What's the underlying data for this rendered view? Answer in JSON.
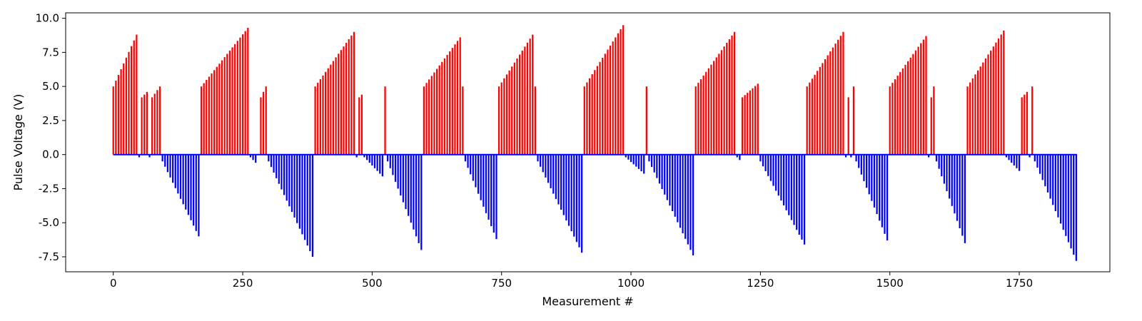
{
  "chart_data": {
    "type": "bar",
    "title": "",
    "xlabel": "Measurement #",
    "ylabel": "Pulse Voltage (V)",
    "xlim": [
      -92,
      1925
    ],
    "ylim": [
      -8.6,
      10.4
    ],
    "xticks": [
      0,
      250,
      500,
      750,
      1000,
      1250,
      1500,
      1750
    ],
    "yticks": [
      -7.5,
      -5.0,
      -2.5,
      0.0,
      2.5,
      5.0,
      7.5,
      10.0
    ],
    "x_step": 5,
    "grid": false,
    "legend": "none",
    "colors": {
      "positive": "#ff0000",
      "negative": "#0000ff"
    },
    "segments": [
      {
        "sign": "pos",
        "start": 0,
        "n": 10,
        "from": 5.0,
        "to": 8.8
      },
      {
        "sign": "neg",
        "start": 50,
        "n": 1,
        "from": -0.2,
        "to": -0.2
      },
      {
        "sign": "pos",
        "start": 55,
        "n": 3,
        "from": 4.2,
        "to": 4.6
      },
      {
        "sign": "neg",
        "start": 70,
        "n": 1,
        "from": -0.2,
        "to": -0.2
      },
      {
        "sign": "pos",
        "start": 75,
        "n": 4,
        "from": 4.2,
        "to": 5.0
      },
      {
        "sign": "neg",
        "start": 95,
        "n": 15,
        "from": -0.5,
        "to": -6.0
      },
      {
        "sign": "pos",
        "start": 170,
        "n": 19,
        "from": 5.0,
        "to": 9.3
      },
      {
        "sign": "neg",
        "start": 265,
        "n": 3,
        "from": -0.2,
        "to": -0.6
      },
      {
        "sign": "pos",
        "start": 285,
        "n": 3,
        "from": 4.2,
        "to": 5.0
      },
      {
        "sign": "neg",
        "start": 300,
        "n": 18,
        "from": -0.5,
        "to": -7.5
      },
      {
        "sign": "pos",
        "start": 390,
        "n": 16,
        "from": 5.0,
        "to": 9.0
      },
      {
        "sign": "neg",
        "start": 470,
        "n": 1,
        "from": -0.2,
        "to": -0.2
      },
      {
        "sign": "pos",
        "start": 475,
        "n": 2,
        "from": 4.2,
        "to": 4.4
      },
      {
        "sign": "neg",
        "start": 485,
        "n": 8,
        "from": -0.2,
        "to": -1.6
      },
      {
        "sign": "pos",
        "start": 525,
        "n": 1,
        "from": 5.0,
        "to": 5.0
      },
      {
        "sign": "neg",
        "start": 530,
        "n": 14,
        "from": -0.5,
        "to": -7.0
      },
      {
        "sign": "pos",
        "start": 600,
        "n": 15,
        "from": 5.0,
        "to": 8.6
      },
      {
        "sign": "pos",
        "start": 675,
        "n": 1,
        "from": 5.0,
        "to": 5.0
      },
      {
        "sign": "neg",
        "start": 680,
        "n": 13,
        "from": -0.5,
        "to": -6.2
      },
      {
        "sign": "pos",
        "start": 745,
        "n": 14,
        "from": 5.0,
        "to": 8.8
      },
      {
        "sign": "pos",
        "start": 815,
        "n": 1,
        "from": 5.0,
        "to": 5.0
      },
      {
        "sign": "neg",
        "start": 820,
        "n": 18,
        "from": -0.5,
        "to": -7.2
      },
      {
        "sign": "pos",
        "start": 910,
        "n": 16,
        "from": 5.0,
        "to": 9.5
      },
      {
        "sign": "neg",
        "start": 990,
        "n": 8,
        "from": -0.2,
        "to": -1.4
      },
      {
        "sign": "pos",
        "start": 1030,
        "n": 1,
        "from": 5.0,
        "to": 5.0
      },
      {
        "sign": "neg",
        "start": 1035,
        "n": 18,
        "from": -0.5,
        "to": -7.4
      },
      {
        "sign": "pos",
        "start": 1125,
        "n": 16,
        "from": 5.0,
        "to": 9.0
      },
      {
        "sign": "neg",
        "start": 1205,
        "n": 2,
        "from": -0.2,
        "to": -0.4
      },
      {
        "sign": "pos",
        "start": 1215,
        "n": 7,
        "from": 4.2,
        "to": 5.2
      },
      {
        "sign": "neg",
        "start": 1250,
        "n": 18,
        "from": -0.5,
        "to": -6.6
      },
      {
        "sign": "pos",
        "start": 1340,
        "n": 15,
        "from": 5.0,
        "to": 9.0
      },
      {
        "sign": "neg",
        "start": 1415,
        "n": 1,
        "from": -0.2,
        "to": -0.2
      },
      {
        "sign": "pos",
        "start": 1420,
        "n": 1,
        "from": 4.2,
        "to": 4.2
      },
      {
        "sign": "neg",
        "start": 1425,
        "n": 1,
        "from": -0.2,
        "to": -0.2
      },
      {
        "sign": "pos",
        "start": 1430,
        "n": 1,
        "from": 5.0,
        "to": 5.0
      },
      {
        "sign": "neg",
        "start": 1435,
        "n": 13,
        "from": -0.5,
        "to": -6.3
      },
      {
        "sign": "pos",
        "start": 1500,
        "n": 15,
        "from": 5.0,
        "to": 8.7
      },
      {
        "sign": "neg",
        "start": 1575,
        "n": 1,
        "from": -0.2,
        "to": -0.2
      },
      {
        "sign": "pos",
        "start": 1580,
        "n": 2,
        "from": 4.2,
        "to": 5.0
      },
      {
        "sign": "neg",
        "start": 1590,
        "n": 12,
        "from": -0.5,
        "to": -6.5
      },
      {
        "sign": "pos",
        "start": 1650,
        "n": 15,
        "from": 5.0,
        "to": 9.1
      },
      {
        "sign": "neg",
        "start": 1725,
        "n": 6,
        "from": -0.2,
        "to": -1.2
      },
      {
        "sign": "pos",
        "start": 1755,
        "n": 3,
        "from": 4.2,
        "to": 4.6
      },
      {
        "sign": "neg",
        "start": 1770,
        "n": 1,
        "from": -0.2,
        "to": -0.2
      },
      {
        "sign": "pos",
        "start": 1775,
        "n": 1,
        "from": 5.0,
        "to": 5.0
      },
      {
        "sign": "neg",
        "start": 1780,
        "n": 17,
        "from": -0.5,
        "to": -7.8
      }
    ]
  }
}
